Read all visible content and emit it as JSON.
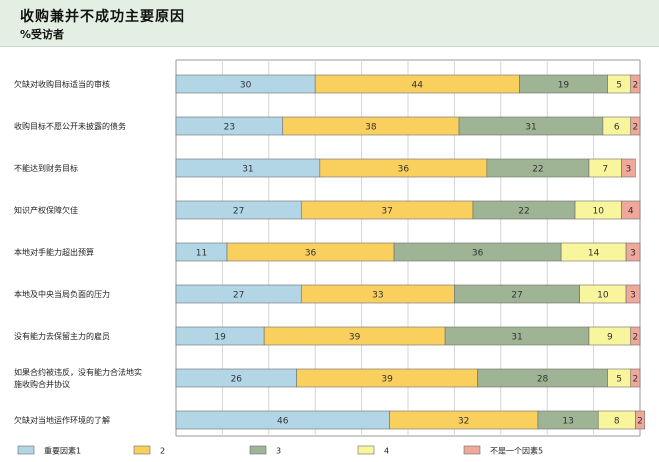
{
  "header": {
    "title": "收购兼并不成功主要原因",
    "subtitle": "%受访者"
  },
  "chart_data": {
    "type": "bar",
    "orientation": "horizontal",
    "stacked": true,
    "percent_stacked": true,
    "categories": [
      [
        "欠缺对收购目标适当的审核"
      ],
      [
        "收购目标不愿公开未披露的债务"
      ],
      [
        "不能达到财务目标"
      ],
      [
        "知识产权保障欠佳"
      ],
      [
        "本地对手能力超出预算"
      ],
      [
        "本地及中央当局负面的压力"
      ],
      [
        "没有能力去保留主力的雇员"
      ],
      [
        "如果合约被违反，没有能力合法地实",
        "施收购合并协议"
      ],
      [
        "欠缺对当地运作环境的了解"
      ]
    ],
    "series": [
      {
        "name": "重要因素1",
        "color": "#b3d6e6",
        "values": [
          30,
          23,
          31,
          27,
          11,
          27,
          19,
          26,
          46
        ]
      },
      {
        "name": "2",
        "color": "#f9cf5e",
        "values": [
          44,
          38,
          36,
          37,
          36,
          33,
          39,
          39,
          32
        ]
      },
      {
        "name": "3",
        "color": "#9fb494",
        "values": [
          19,
          31,
          22,
          22,
          36,
          27,
          31,
          28,
          13
        ]
      },
      {
        "name": "4",
        "color": "#f9f59c",
        "values": [
          5,
          6,
          7,
          10,
          14,
          10,
          9,
          5,
          8
        ]
      },
      {
        "name": "不是一个因素5",
        "color": "#f0a89a",
        "values": [
          2,
          2,
          3,
          4,
          3,
          3,
          2,
          2,
          2
        ]
      }
    ],
    "xlim": [
      0,
      100
    ],
    "grid": true
  }
}
